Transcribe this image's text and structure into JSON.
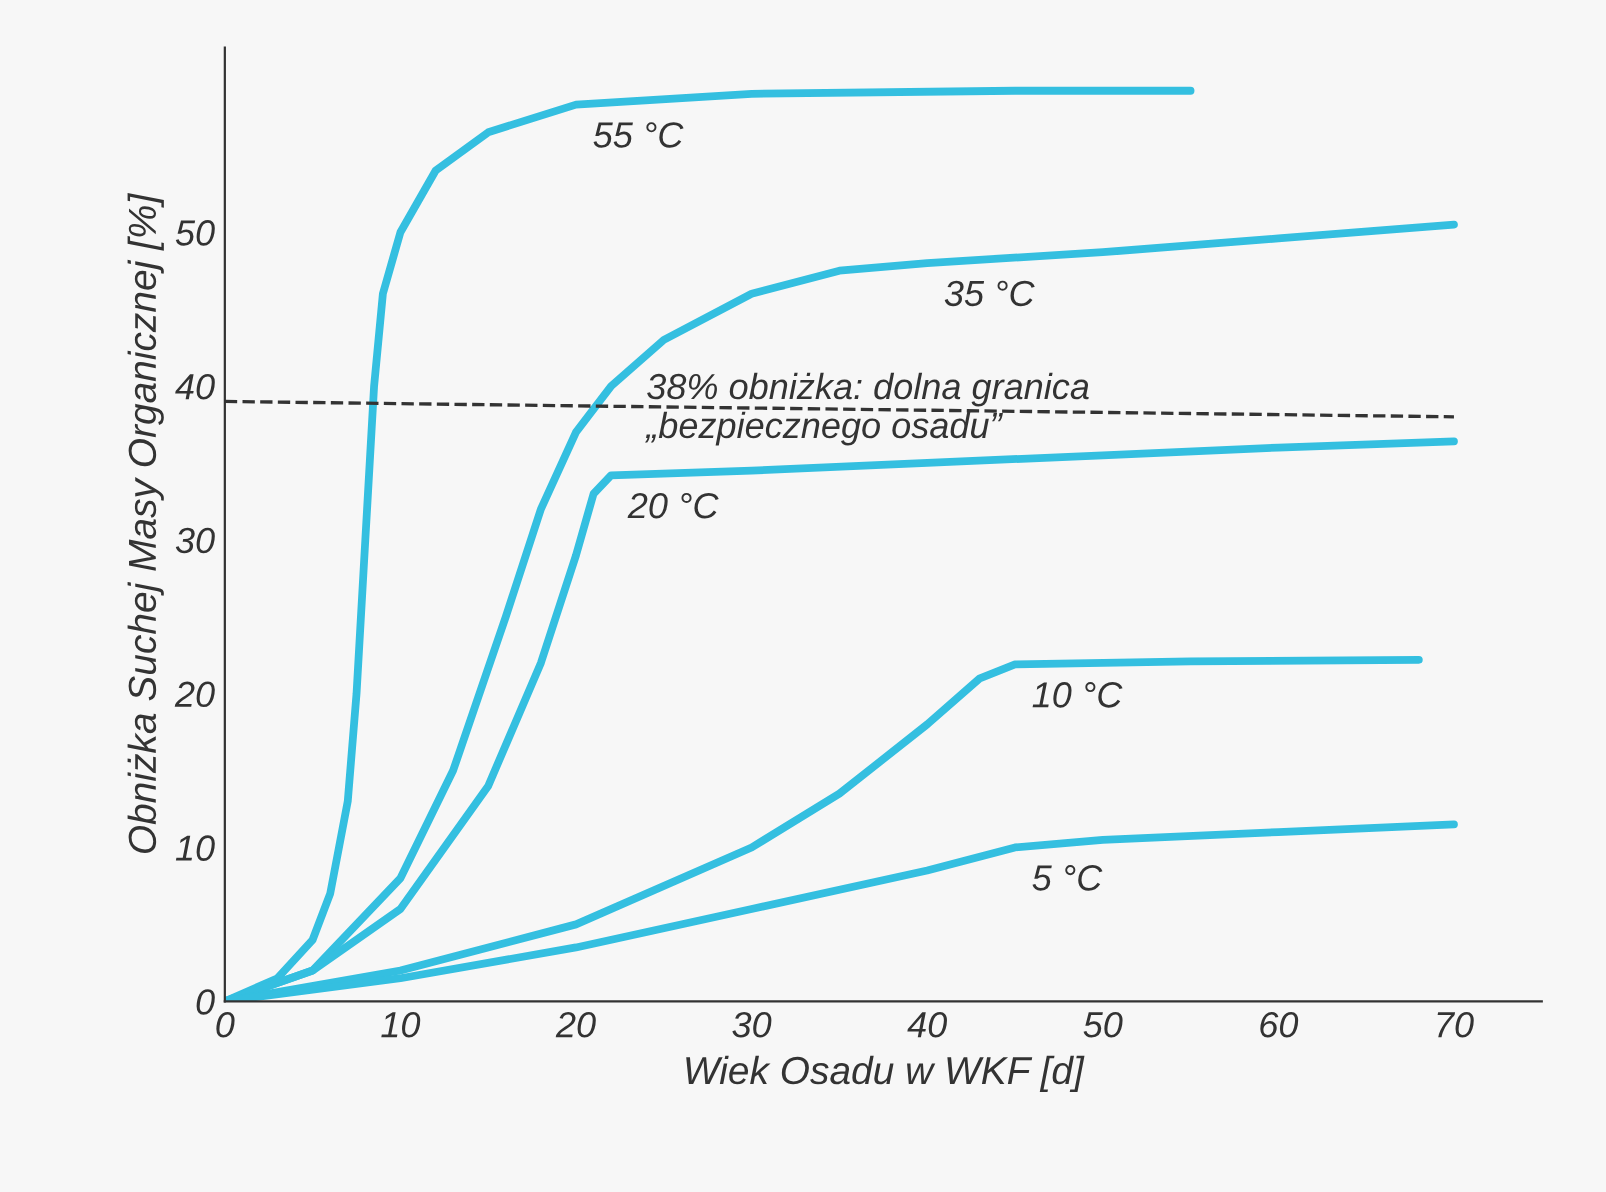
{
  "chart_data": {
    "type": "line",
    "xlabel": "Wiek Osadu w WKF [d]",
    "ylabel": "Obniżka Suchej Masy Organicznej [%]",
    "xlim": [
      0,
      75
    ],
    "ylim": [
      0,
      62
    ],
    "xticks": [
      0,
      10,
      20,
      30,
      40,
      50,
      60,
      70
    ],
    "yticks": [
      0,
      10,
      20,
      30,
      40,
      50
    ],
    "grid": false,
    "legend": false,
    "marker": "none",
    "line_style": "solid",
    "series": [
      {
        "color": "#34bfe0",
        "x": [
          0,
          3,
          5,
          6,
          7,
          7.5,
          8,
          8.5,
          9,
          10,
          12,
          15,
          20,
          30,
          45,
          55
        ],
        "values": [
          0,
          1.5,
          4,
          7,
          13,
          20,
          30,
          40,
          46,
          50,
          54,
          56.5,
          58.3,
          59,
          59.2,
          59.2
        ]
      },
      {
        "color": "#34bfe0",
        "x": [
          0,
          5,
          10,
          13,
          16,
          18,
          20,
          22,
          25,
          30,
          35,
          40,
          50,
          60,
          70
        ],
        "values": [
          0,
          2,
          8,
          15,
          25,
          32,
          37,
          40,
          43,
          46,
          47.5,
          48,
          48.7,
          49.6,
          50.5
        ]
      },
      {
        "color": "#34bfe0",
        "x": [
          0,
          5,
          10,
          15,
          18,
          20,
          21,
          22,
          30,
          40,
          50,
          60,
          70
        ],
        "values": [
          0,
          2,
          6,
          14,
          22,
          29,
          33,
          34.2,
          34.5,
          35,
          35.5,
          36,
          36.4
        ]
      },
      {
        "color": "#34bfe0",
        "x": [
          0,
          10,
          20,
          30,
          35,
          40,
          43,
          45,
          55,
          68
        ],
        "values": [
          0,
          2,
          5,
          10,
          13.5,
          18,
          21,
          21.9,
          22.1,
          22.2
        ]
      },
      {
        "color": "#34bfe0",
        "x": [
          0,
          10,
          20,
          30,
          40,
          45,
          50,
          60,
          70
        ],
        "values": [
          0,
          1.5,
          3.5,
          6,
          8.5,
          10,
          10.5,
          11,
          11.5
        ]
      },
      {
        "color": "#333333",
        "line_style": "dashed",
        "x": [
          0,
          70
        ],
        "values": [
          39,
          38
        ]
      }
    ],
    "annotations": [
      {
        "text": "55 °C",
        "x": 20,
        "y": 58.3
      },
      {
        "text": "35 °C",
        "x": 40,
        "y": 48
      },
      {
        "text": "38% obniżka: dolna granica\n„bezpiecznego osadu”",
        "x": 24,
        "y": 38.5
      },
      {
        "text": "20 °C",
        "x": 22,
        "y": 34.2
      },
      {
        "text": "10 °C",
        "x": 45,
        "y": 21.9
      },
      {
        "text": "5 °C",
        "x": 45,
        "y": 10
      }
    ]
  }
}
